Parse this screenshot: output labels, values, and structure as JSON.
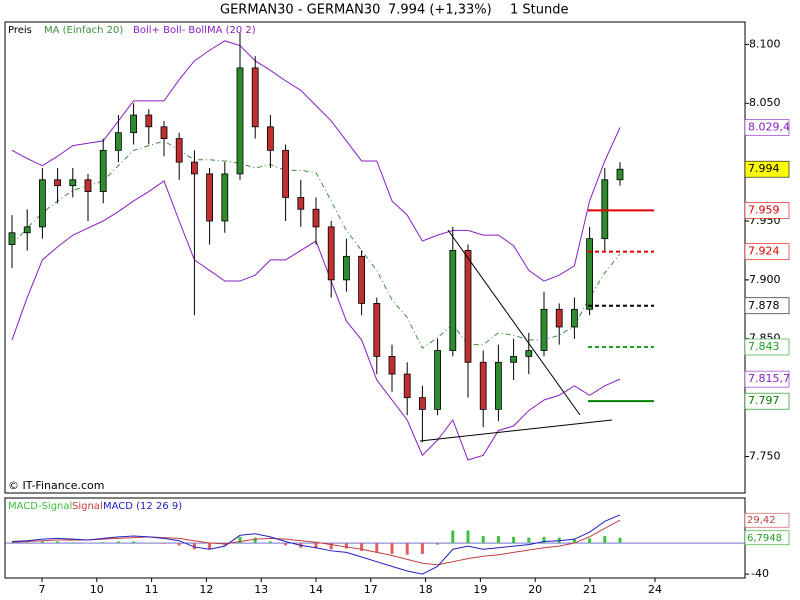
{
  "chart_data": [
    {
      "type": "candlestick",
      "title": "GERMAN30 - GERMAN30",
      "quote": "7.994 (+1,33%)",
      "interval": "1 Stunde",
      "credit": "© IT-Finance.com",
      "candles": {
        "name": "Preis",
        "up_color": "#2e8b2e",
        "down_color": "#c03030",
        "open": [
          7930,
          7940,
          7945,
          7985,
          7980,
          7985,
          7975,
          8010,
          8025,
          8040,
          8030,
          8020,
          8000,
          7990,
          7950,
          7990,
          8080,
          8030,
          8010,
          7970,
          7960,
          7945,
          7900,
          7920,
          7880,
          7835,
          7820,
          7800,
          7790,
          7840,
          7925,
          7830,
          7790,
          7830,
          7835,
          7840,
          7875,
          7860,
          7875,
          7935,
          7985
        ],
        "high": [
          7955,
          7960,
          7995,
          7995,
          7995,
          7990,
          8020,
          8040,
          8050,
          8045,
          8035,
          8025,
          8010,
          7995,
          8000,
          8110,
          8090,
          8040,
          8015,
          7985,
          7970,
          7950,
          7935,
          7925,
          7885,
          7845,
          7830,
          7810,
          7850,
          7945,
          7930,
          7840,
          7845,
          7850,
          7855,
          7890,
          7880,
          7885,
          7945,
          7995,
          8000
        ],
        "low": [
          7910,
          7925,
          7935,
          7965,
          7970,
          7950,
          7965,
          8000,
          8015,
          8015,
          8005,
          7985,
          7870,
          7930,
          7940,
          7985,
          8020,
          7995,
          7950,
          7945,
          7930,
          7885,
          7890,
          7870,
          7820,
          7805,
          7785,
          7762,
          7785,
          7835,
          7800,
          7775,
          7780,
          7815,
          7820,
          7835,
          7845,
          7850,
          7870,
          7925,
          7980
        ],
        "close": [
          7940,
          7945,
          7985,
          7980,
          7985,
          7975,
          8010,
          8025,
          8040,
          8030,
          8020,
          8000,
          7990,
          7950,
          7990,
          8080,
          8030,
          8010,
          7970,
          7960,
          7945,
          7900,
          7920,
          7880,
          7835,
          7820,
          7800,
          7790,
          7840,
          7925,
          7830,
          7790,
          7830,
          7835,
          7840,
          7875,
          7860,
          7875,
          7935,
          7985,
          7994
        ]
      },
      "ma": {
        "name": "MA (Einfach 20)",
        "color": "#3f8f3f",
        "values": [
          7930,
          7944,
          7957,
          7967,
          7976,
          7980,
          7984,
          7997,
          8010,
          8014,
          8018,
          8010,
          8002,
          8002,
          8001,
          7999,
          7995,
          7998,
          7993,
          7993,
          7991,
          7967,
          7942,
          7925,
          7908,
          7883,
          7868,
          7842,
          7851,
          7862,
          7845,
          7845,
          7855,
          7853,
          7849,
          7849,
          7853,
          7861,
          7885,
          7906,
          7922
        ]
      },
      "bands": {
        "name": "Boll+ Boll- BollMA (20 2)",
        "color": "#8a1fc4",
        "upper": [
          8010,
          8003,
          7997,
          8005,
          8014,
          8016,
          8018,
          8035,
          8052,
          8052,
          8052,
          8070,
          8086,
          8095,
          8103,
          8099,
          8086,
          8078,
          8069,
          8061,
          8048,
          8035,
          8018,
          8001,
          8001,
          7967,
          7955,
          7933,
          7938,
          7942,
          7942,
          7938,
          7938,
          7929,
          7908,
          7899,
          7904,
          7912,
          7967,
          8001,
          8029.4
        ],
        "lower": [
          7849,
          7885,
          7917,
          7928,
          7938,
          7944,
          7950,
          7958,
          7967,
          7975,
          7984,
          7950,
          7917,
          7908,
          7899,
          7899,
          7904,
          7917,
          7917,
          7925,
          7933,
          7899,
          7865,
          7849,
          7815,
          7798,
          7781,
          7751,
          7764,
          7781,
          7747,
          7751,
          7772,
          7776,
          7789,
          7798,
          7802,
          7810,
          7802,
          7810,
          7815.7
        ]
      },
      "levels": [
        {
          "value": 7959,
          "label": "7.959",
          "color": "#e00000",
          "dashed": false
        },
        {
          "value": 7924,
          "label": "7.924",
          "color": "#e00000",
          "dashed": true
        },
        {
          "value": 7878,
          "label": "7.878",
          "color": "#000000",
          "dashed": true
        },
        {
          "value": 7843,
          "label": "7.843",
          "color": "#20a020",
          "dashed": true
        },
        {
          "value": 7797,
          "label": "7.797",
          "color": "#008000",
          "dashed": false
        }
      ],
      "price_labels": [
        {
          "value": 8029.4,
          "label": "8.029,4",
          "color": "#8a1fc4",
          "background": "#ffffff"
        },
        {
          "value": 7994,
          "label": "7.994",
          "color": "#000000",
          "background": "#ffff00"
        },
        {
          "value": 7815.7,
          "label": "7.815,7",
          "color": "#8a1fc4",
          "background": "#ffffff"
        }
      ],
      "ylim": [
        7719,
        8119
      ],
      "yticks": [
        {
          "value": 8100,
          "label": "8.100"
        },
        {
          "value": 8050,
          "label": "8.050"
        },
        {
          "value": 7950,
          "label": "7.950"
        },
        {
          "value": 7900,
          "label": "7.900"
        },
        {
          "value": 7850,
          "label": "7.850"
        },
        {
          "value": 7750,
          "label": "7.750"
        }
      ],
      "x_labels": [
        "7",
        "10",
        "11",
        "12",
        "13",
        "14",
        "17",
        "18",
        "19",
        "20",
        "21",
        "24"
      ]
    },
    {
      "type": "macd",
      "series": [
        {
          "name": "MACD-Signal",
          "color": "#40c040",
          "negative_color": "#e06060",
          "values": [
            1,
            1,
            2,
            2,
            1,
            0,
            1,
            2,
            2,
            0,
            -1,
            -3,
            -8,
            -8,
            -3,
            8,
            7,
            2,
            -3,
            -6,
            -7,
            -8,
            -7,
            -10,
            -12,
            -14,
            -15,
            -14,
            -2,
            16,
            16,
            9,
            9,
            8,
            7,
            8,
            7,
            5,
            6,
            9,
            6.7948
          ]
        },
        {
          "name": "Signal",
          "color": "#c04040",
          "values": [
            1,
            2,
            3,
            4,
            4,
            4,
            5,
            6,
            7,
            8,
            7,
            6,
            3,
            0,
            -1,
            2,
            5,
            6,
            5,
            3,
            1,
            -2,
            -5,
            -8,
            -12,
            -16,
            -21,
            -26,
            -28,
            -24,
            -20,
            -17,
            -15,
            -12,
            -9,
            -6,
            -4,
            0,
            8,
            19,
            29.42
          ]
        },
        {
          "name": "MACD (12 26 9)",
          "color": "#2020c0",
          "values": [
            2,
            3,
            5,
            6,
            5,
            4,
            6,
            8,
            9,
            8,
            6,
            3,
            -5,
            -8,
            -4,
            10,
            12,
            8,
            2,
            -3,
            -6,
            -10,
            -12,
            -18,
            -24,
            -30,
            -36,
            -40,
            -30,
            -8,
            -4,
            -8,
            -6,
            -4,
            -2,
            2,
            3,
            5,
            14,
            28,
            36.2
          ]
        }
      ],
      "markers": [
        {
          "value": 29.42,
          "label": "29,42",
          "color": "#c04040"
        },
        {
          "value": 6.7948,
          "label": "6,7948",
          "color": "#20a020"
        }
      ],
      "ylim": [
        -45,
        58
      ],
      "yticks": [
        -40
      ]
    }
  ]
}
